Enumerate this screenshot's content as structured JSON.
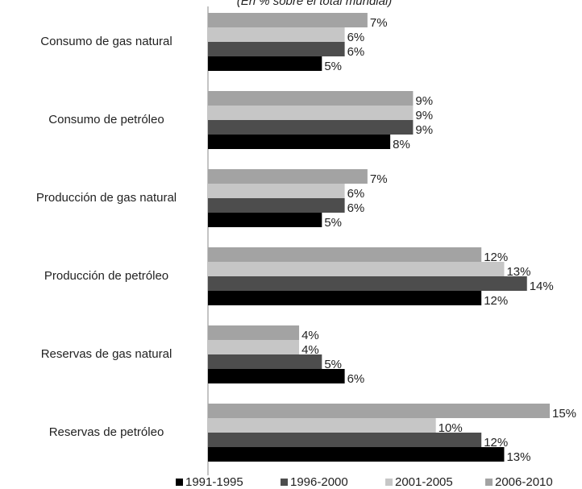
{
  "chart_data": {
    "type": "bar",
    "orientation": "horizontal",
    "subtitle": "(En % sobre el total mundial)",
    "categories": [
      "Consumo de gas natural",
      "Consumo de petróleo",
      "Producción de gas natural",
      "Producción de petróleo",
      "Reservas de gas natural",
      "Reservas de petróleo"
    ],
    "series": [
      {
        "name": "1991-1995",
        "color": "#000000",
        "values": [
          5,
          8,
          5,
          12,
          6,
          13
        ],
        "value_labels": [
          "5%",
          "8%",
          "5%",
          "12%",
          "6%",
          "13%"
        ]
      },
      {
        "name": "1996-2000",
        "color": "#4d4d4d",
        "values": [
          6,
          9,
          6,
          14,
          5,
          12
        ],
        "value_labels": [
          "6%",
          "9%",
          "6%",
          "14%",
          "5%",
          "12%"
        ]
      },
      {
        "name": "2001-2005",
        "color": "#c6c6c6",
        "values": [
          6,
          9,
          6,
          13,
          4,
          10
        ],
        "value_labels": [
          "6%",
          "9%",
          "6%",
          "13%",
          "4%",
          "10%"
        ]
      },
      {
        "name": "2006-2010",
        "color": "#a3a3a3",
        "values": [
          7,
          9,
          7,
          12,
          4,
          15
        ],
        "value_labels": [
          "7%",
          "9%",
          "7%",
          "12%",
          "4%",
          "15%"
        ]
      }
    ],
    "legend": "bottom"
  }
}
